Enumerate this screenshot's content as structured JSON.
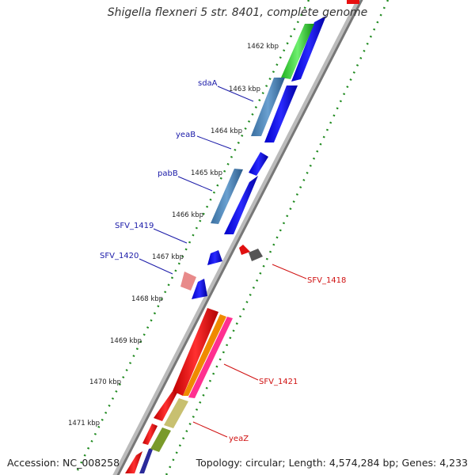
{
  "title": "Shigella flexneri 5 str. 8401, complete genome",
  "footer": {
    "accession": "Accession: NC_008258",
    "topology": "Topology: circular; Length: 4,574,284 bp; Genes: 4,233"
  },
  "ticks": [
    "1462 kbp",
    "1463 kbp",
    "1464 kbp",
    "1465 kbp",
    "1466 kbp",
    "1467 kbp",
    "1468 kbp",
    "1469 kbp",
    "1470 kbp",
    "1471 kbp"
  ],
  "labels": {
    "left": [
      "sdaA",
      "yeaB",
      "pabB",
      "SFV_1419",
      "SFV_1420"
    ],
    "right": [
      "SFV_1418",
      "SFV_1421",
      "yeaZ"
    ]
  },
  "colors": {
    "forward_gene": "#1010e0",
    "reverse_gene": "#e81010",
    "left_label": "#1a1aa8",
    "right_label": "#d01010",
    "tick_line": "#2e8b2e",
    "backbone": "#888888"
  }
}
